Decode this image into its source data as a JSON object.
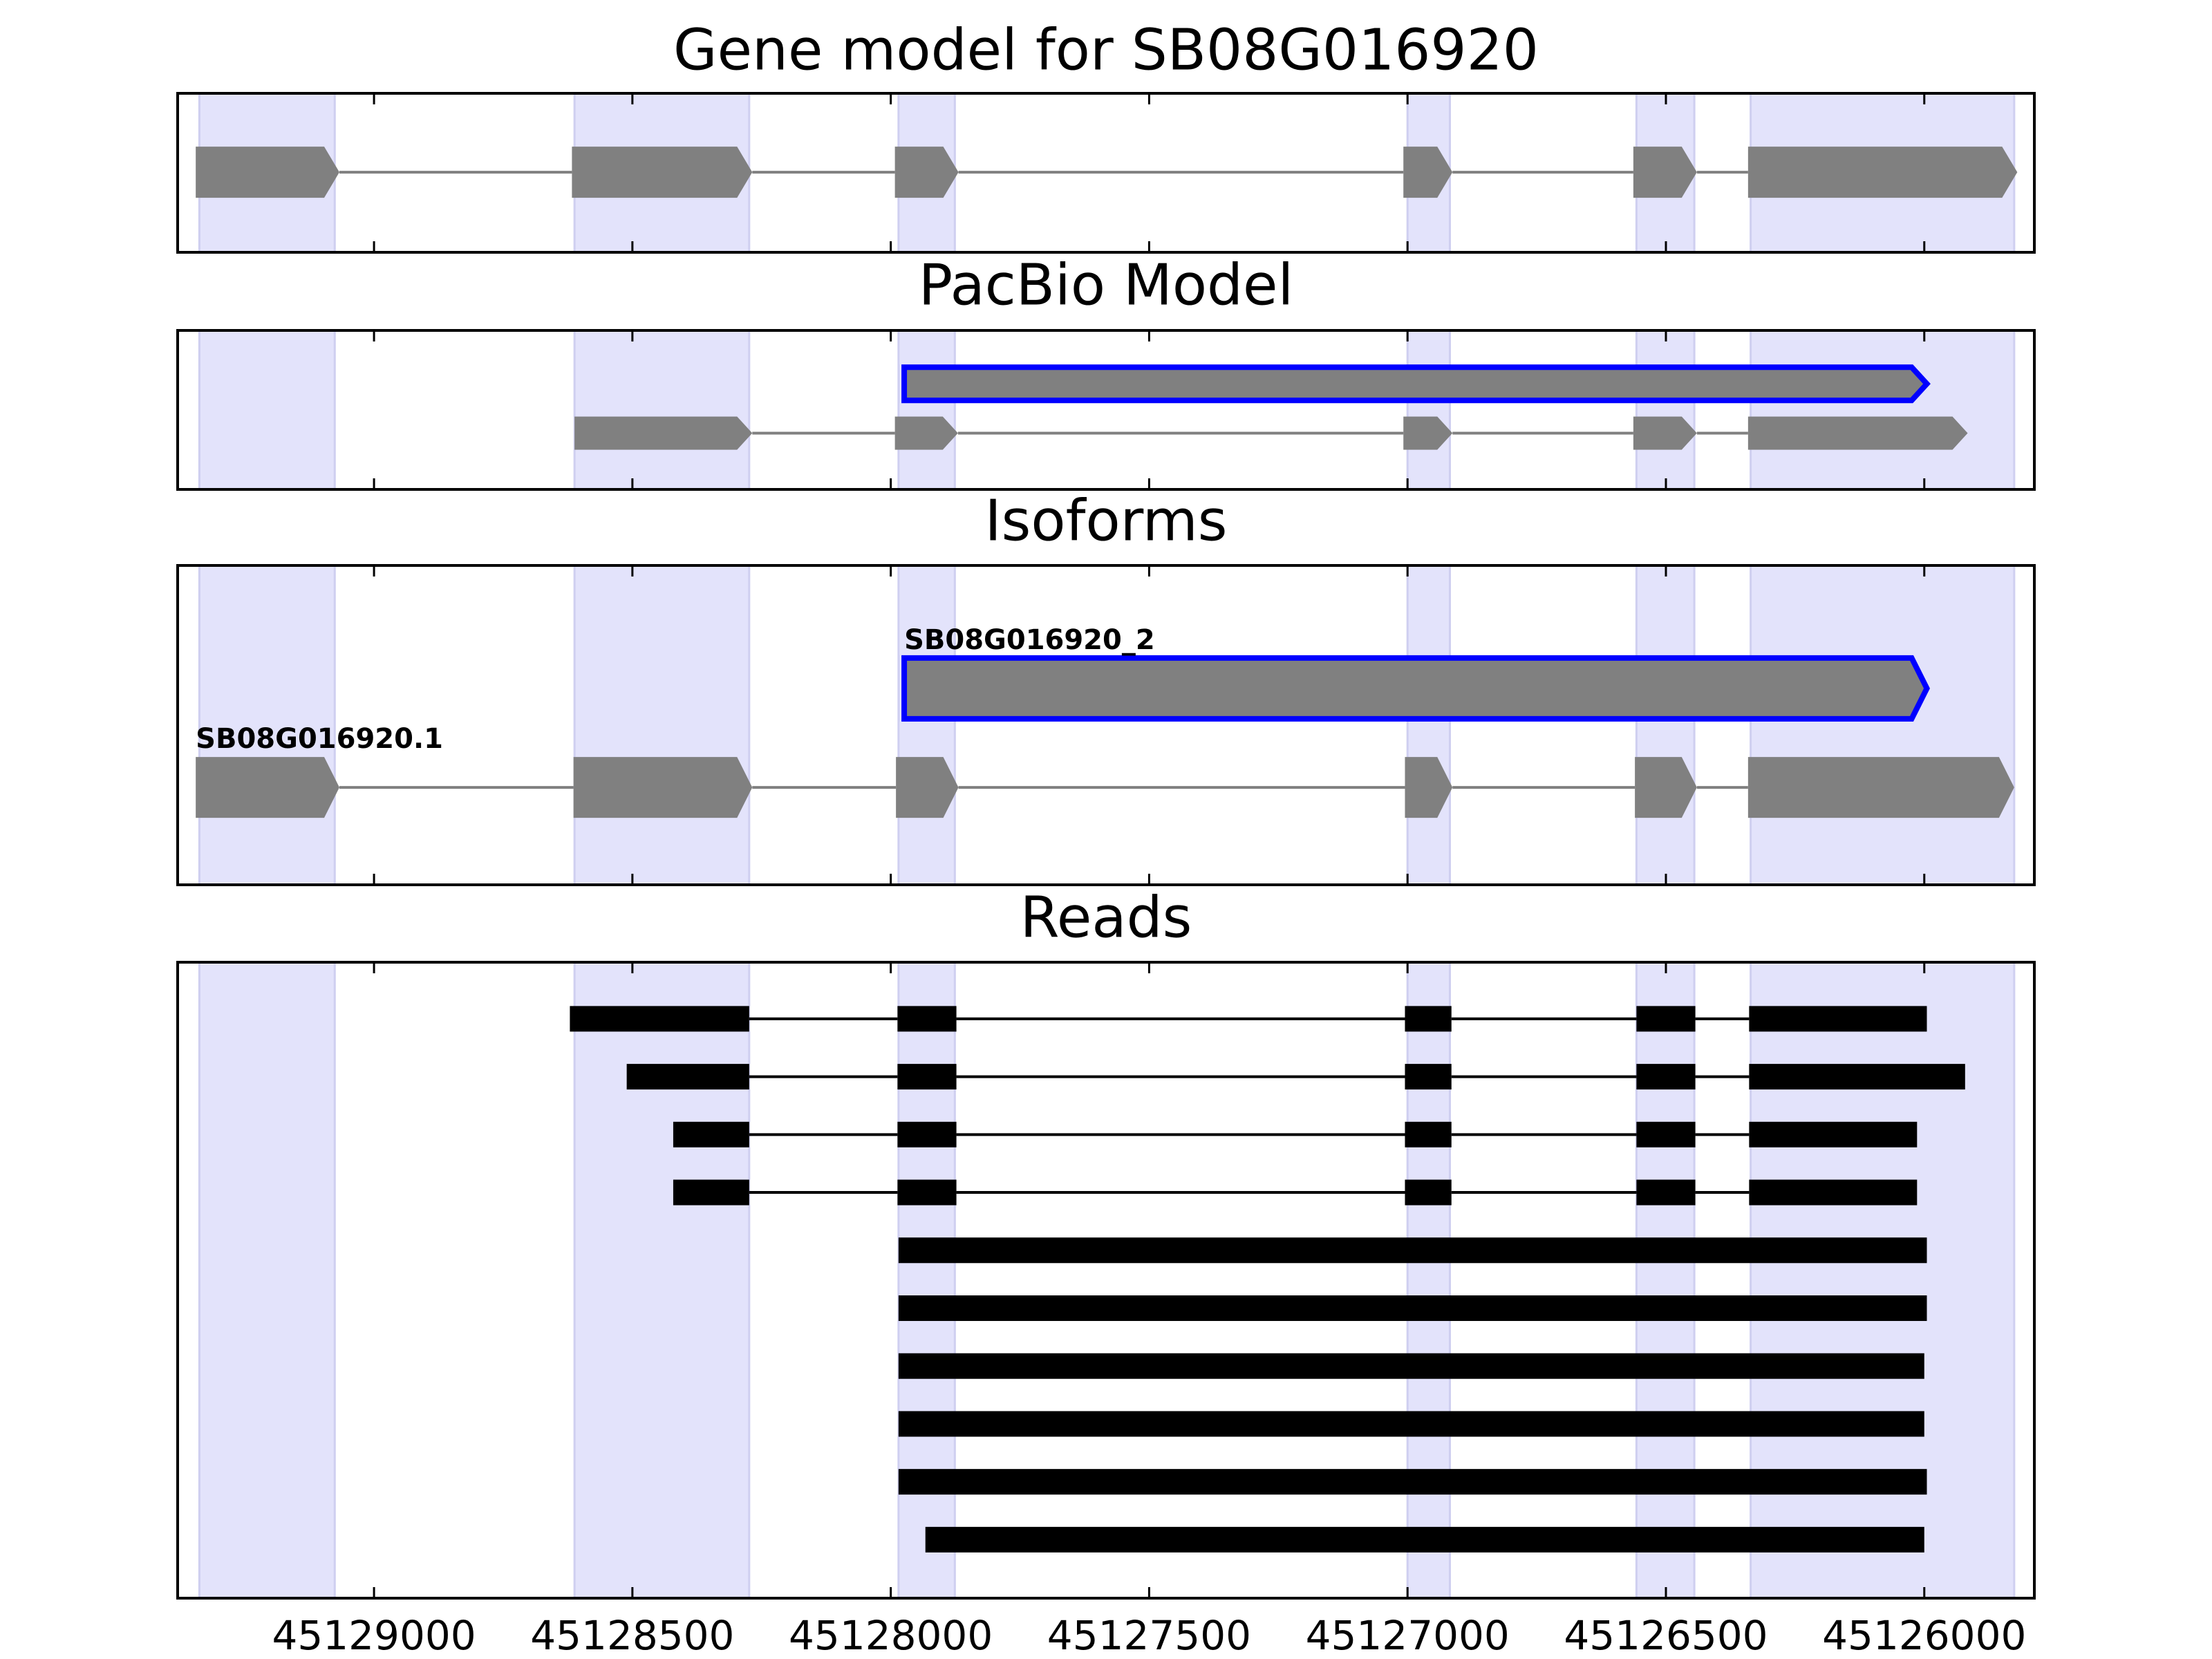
{
  "exon_regions": [
    [
      45129338,
      45129076
    ],
    [
      45128612,
      45128274
    ],
    [
      45127985,
      45127876
    ],
    [
      45127000,
      45126918
    ],
    [
      45126557,
      45126445
    ],
    [
      45126336,
      45125826
    ]
  ],
  "exon_region_color": "#e3e3fb",
  "chart_data": [
    {
      "type": "gene",
      "title": "Gene model for SB08G016920",
      "xlim": [
        45129380,
        45125787
      ],
      "xticks": [
        45129000,
        45128500,
        45128000,
        45127500,
        45127000,
        45126500,
        45126000
      ],
      "features": [
        {
          "color": "#808080",
          "exons": [
            [
              45129345,
              45129067
            ],
            [
              45128617,
              45128268
            ],
            [
              45127992,
              45127869
            ],
            [
              45127008,
              45126913
            ],
            [
              45126563,
              45126440
            ],
            [
              45126341,
              45125820
            ]
          ]
        }
      ]
    },
    {
      "type": "gene",
      "title": "PacBio Model",
      "xlim": [
        45129380,
        45125787
      ],
      "xticks": [
        45129000,
        45128500,
        45128000,
        45127500,
        45127000,
        45126500,
        45126000
      ],
      "features": [
        {
          "color": "#808080",
          "outline": "#0000ff",
          "exons": [
            [
              45127974,
              45125995
            ]
          ]
        },
        {
          "color": "#808080",
          "exons": [
            [
              45128612,
              45128268
            ],
            [
              45127992,
              45127870
            ],
            [
              45127008,
              45126913
            ],
            [
              45126563,
              45126440
            ],
            [
              45126341,
              45125916
            ]
          ]
        }
      ]
    },
    {
      "type": "gene",
      "title": "Isoforms",
      "xlim": [
        45129380,
        45125787
      ],
      "xticks": [
        45129000,
        45128500,
        45128000,
        45127500,
        45127000,
        45126500,
        45126000
      ],
      "features": [
        {
          "label": "SB08G016920_2",
          "color": "#808080",
          "outline": "#0000ff",
          "exons": [
            [
              45127974,
              45125995
            ]
          ]
        },
        {
          "label": "SB08G016920.1",
          "color": "#808080",
          "exons": [
            [
              45129345,
              45129067
            ],
            [
              45128614,
              45128268
            ],
            [
              45127990,
              45127869
            ],
            [
              45127005,
              45126913
            ],
            [
              45126560,
              45126440
            ],
            [
              45126341,
              45125826
            ]
          ]
        }
      ]
    },
    {
      "type": "reads",
      "title": "Reads",
      "xlim": [
        45129380,
        45125787
      ],
      "xticks": [
        45129000,
        45128500,
        45128000,
        45127500,
        45127000,
        45126500,
        45126000
      ],
      "features": [
        {
          "color": "#000000",
          "exons": [
            [
              45128621,
              45128274
            ],
            [
              45127987,
              45127873
            ],
            [
              45127005,
              45126915
            ],
            [
              45126557,
              45126443
            ],
            [
              45126339,
              45125995
            ]
          ]
        },
        {
          "color": "#000000",
          "exons": [
            [
              45128511,
              45128274
            ],
            [
              45127987,
              45127873
            ],
            [
              45127005,
              45126915
            ],
            [
              45126557,
              45126443
            ],
            [
              45126339,
              45125921
            ]
          ]
        },
        {
          "color": "#000000",
          "exons": [
            [
              45128421,
              45128274
            ],
            [
              45127987,
              45127873
            ],
            [
              45127005,
              45126915
            ],
            [
              45126557,
              45126443
            ],
            [
              45126339,
              45126014
            ]
          ]
        },
        {
          "color": "#000000",
          "exons": [
            [
              45128421,
              45128274
            ],
            [
              45127987,
              45127873
            ],
            [
              45127005,
              45126915
            ],
            [
              45126557,
              45126443
            ],
            [
              45126339,
              45126014
            ]
          ]
        },
        {
          "color": "#000000",
          "exons": [
            [
              45127985,
              45125995
            ]
          ]
        },
        {
          "color": "#000000",
          "exons": [
            [
              45127985,
              45125995
            ]
          ]
        },
        {
          "color": "#000000",
          "exons": [
            [
              45127985,
              45126000
            ]
          ]
        },
        {
          "color": "#000000",
          "exons": [
            [
              45127985,
              45126000
            ]
          ]
        },
        {
          "color": "#000000",
          "exons": [
            [
              45127985,
              45125995
            ]
          ]
        },
        {
          "color": "#000000",
          "exons": [
            [
              45127933,
              45126000
            ]
          ]
        }
      ]
    }
  ]
}
